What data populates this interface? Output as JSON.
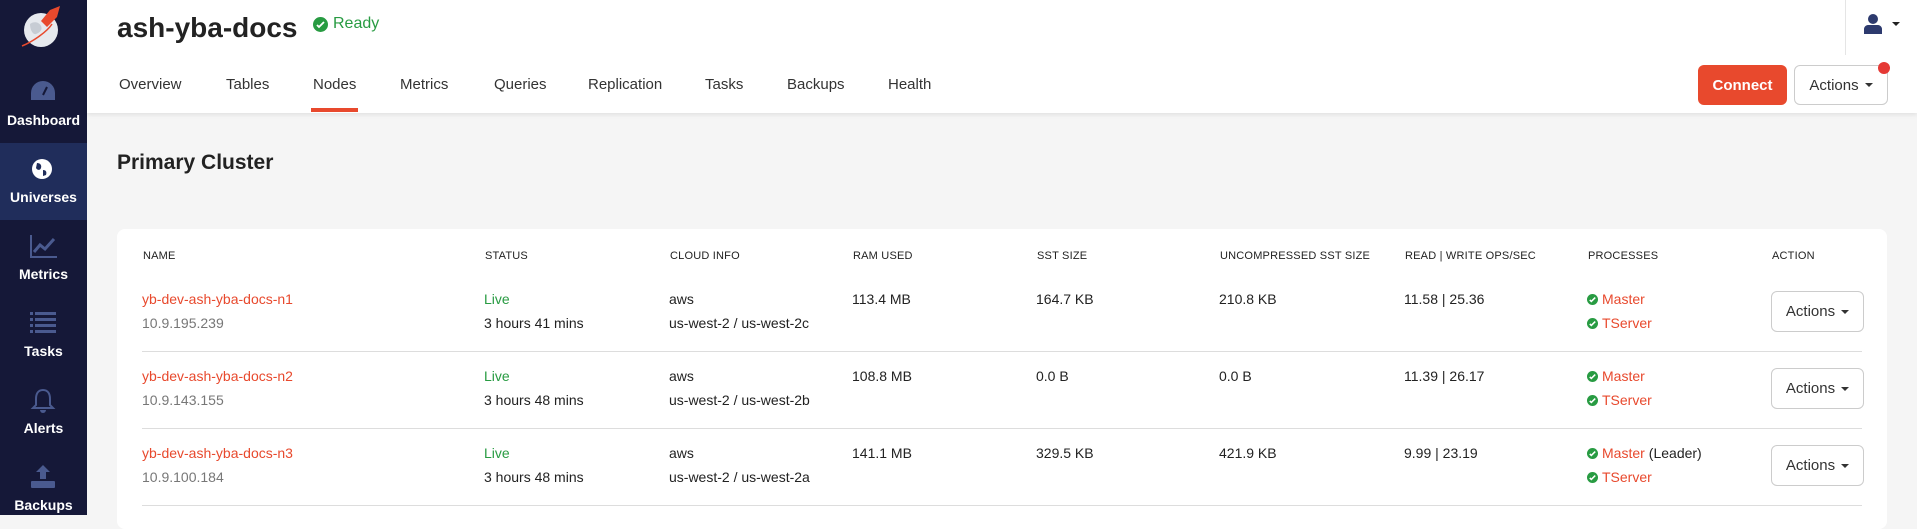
{
  "sidebar": {
    "items": [
      {
        "label": "Dashboard",
        "icon": "dashboard-gauge-icon"
      },
      {
        "label": "Universes",
        "icon": "globe-icon",
        "active": true
      },
      {
        "label": "Metrics",
        "icon": "line-chart-icon"
      },
      {
        "label": "Tasks",
        "icon": "list-icon"
      },
      {
        "label": "Alerts",
        "icon": "bell-icon"
      },
      {
        "label": "Backups",
        "icon": "upload-icon"
      }
    ]
  },
  "header": {
    "title": "ash-yba-docs",
    "status": "Ready",
    "tabs": [
      "Overview",
      "Tables",
      "Nodes",
      "Metrics",
      "Queries",
      "Replication",
      "Tasks",
      "Backups",
      "Health"
    ],
    "active_tab": "Nodes",
    "connect_label": "Connect",
    "actions_label": "Actions"
  },
  "section": {
    "title": "Primary Cluster"
  },
  "table": {
    "columns": [
      "NAME",
      "STATUS",
      "CLOUD INFO",
      "RAM USED",
      "SST SIZE",
      "UNCOMPRESSED SST SIZE",
      "READ | WRITE OPS/SEC",
      "PROCESSES",
      "ACTION"
    ],
    "rows": [
      {
        "name": "yb-dev-ash-yba-docs-n1",
        "ip": "10.9.195.239",
        "status": "Live",
        "uptime": "3 hours 41 mins",
        "cloud": "aws",
        "region": "us-west-2 / us-west-2c",
        "ram": "113.4 MB",
        "sst": "164.7 KB",
        "uncompressed": "210.8 KB",
        "ops": "11.58 | 25.36",
        "master": "Master",
        "leader": "",
        "tserver": "TServer",
        "action": "Actions"
      },
      {
        "name": "yb-dev-ash-yba-docs-n2",
        "ip": "10.9.143.155",
        "status": "Live",
        "uptime": "3 hours 48 mins",
        "cloud": "aws",
        "region": "us-west-2 / us-west-2b",
        "ram": "108.8 MB",
        "sst": "0.0 B",
        "uncompressed": "0.0 B",
        "ops": "11.39 | 26.17",
        "master": "Master",
        "leader": "",
        "tserver": "TServer",
        "action": "Actions"
      },
      {
        "name": "yb-dev-ash-yba-docs-n3",
        "ip": "10.9.100.184",
        "status": "Live",
        "uptime": "3 hours 48 mins",
        "cloud": "aws",
        "region": "us-west-2 / us-west-2a",
        "ram": "141.1 MB",
        "sst": "329.5 KB",
        "uncompressed": "421.9 KB",
        "ops": "9.99 | 23.19",
        "master": "Master",
        "leader": "(Leader)",
        "tserver": "TServer",
        "action": "Actions"
      }
    ]
  },
  "colors": {
    "accent": "#e8492d",
    "sidebar": "#151838",
    "sidebar_active": "#202d5b",
    "live": "#289b42"
  }
}
